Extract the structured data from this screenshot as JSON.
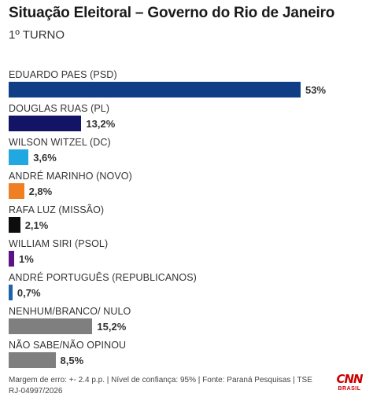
{
  "header": {
    "title": "Situação Eleitoral – Governo do Rio de Janeiro",
    "subtitle": "1º TURNO"
  },
  "chart_data": {
    "type": "bar",
    "orientation": "horizontal",
    "title": "Situação Eleitoral – Governo do Rio de Janeiro",
    "subtitle": "1º TURNO",
    "categories": [
      "EDUARDO PAES (PSD)",
      "DOUGLAS RUAS (PL)",
      "WILSON WITZEL (DC)",
      "ANDRÉ MARINHO (NOVO)",
      "RAFA LUZ (MISSÃO)",
      "WILLIAM SIRI (PSOL)",
      "ANDRÉ PORTUGUÊS (REPUBLICANOS)",
      "NENHUM/BRANCO/ NULO",
      "NÃO SABE/NÃO OPINOU"
    ],
    "values": [
      53,
      13.2,
      3.6,
      2.8,
      2.1,
      1,
      0.7,
      15.2,
      8.5
    ],
    "value_labels": [
      "53%",
      "13,2%",
      "3,6%",
      "2,8%",
      "2,1%",
      "1%",
      "0,7%",
      "15,2%",
      "8,5%"
    ],
    "colors": [
      "#0f3e86",
      "#141466",
      "#22a8e0",
      "#f07f24",
      "#0d0d0d",
      "#5b1385",
      "#2262a8",
      "#7f7f7f",
      "#7f7f7f"
    ],
    "xlim": [
      0,
      53
    ],
    "grid": false,
    "legend": "none"
  },
  "footer": {
    "note": "Margem de erro: +- 2.4 p.p. | Nível de confiança: 95% | Fonte: Paraná Pesquisas | TSE RJ-04997/2026"
  },
  "logo": {
    "text": "CNN",
    "subtext": "BRASIL",
    "color": "#cc0000"
  }
}
